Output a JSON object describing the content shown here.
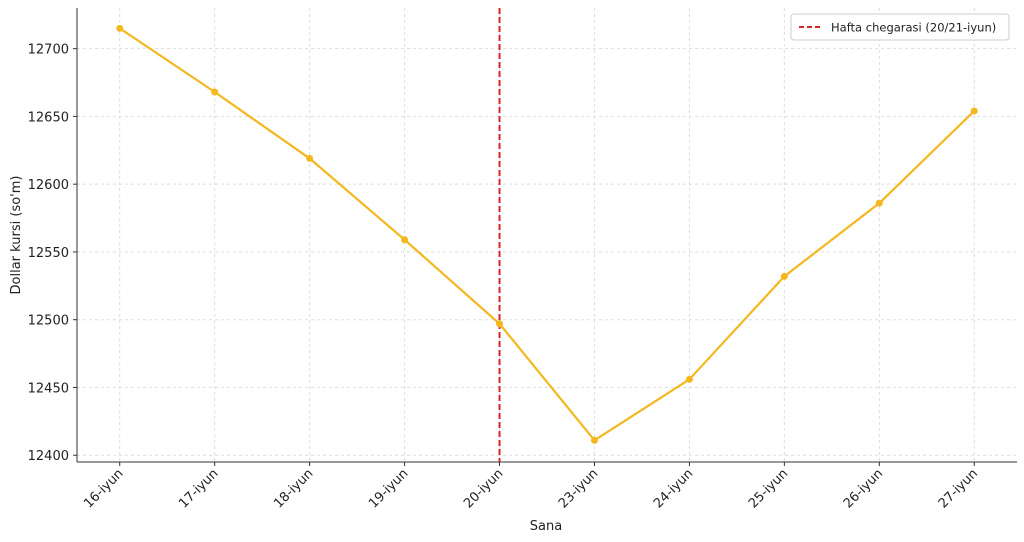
{
  "chart_data": {
    "type": "line",
    "x_label": "Sana",
    "y_label": "Dollar kursi (so'm)",
    "categories": [
      "16-iyun",
      "17-iyun",
      "18-iyun",
      "19-iyun",
      "20-iyun",
      "23-iyun",
      "24-iyun",
      "25-iyun",
      "26-iyun",
      "27-iyun"
    ],
    "values": [
      12715,
      12668,
      12619,
      12559,
      12497,
      12411,
      12456,
      12532,
      12586,
      12654
    ],
    "color": "#f4b71e",
    "ylim": [
      12395,
      12730
    ],
    "yticks": [
      12400,
      12450,
      12500,
      12550,
      12600,
      12650,
      12700
    ],
    "grid": true,
    "vline": {
      "x": "20-iyun",
      "label": "Hafta chegarasi (20/21-iyun)",
      "color": "#d62728"
    },
    "legend": "upper right"
  }
}
